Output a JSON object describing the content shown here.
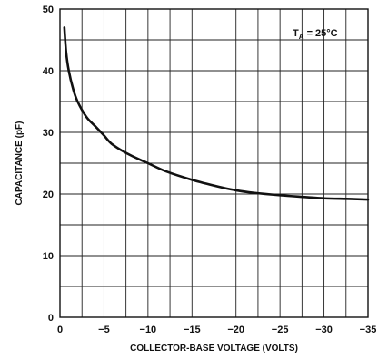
{
  "chart_data": {
    "type": "line",
    "title": "",
    "xlabel": "COLLECTOR-BASE VOLTAGE (VOLTS)",
    "ylabel": "CAPACITANCE (pF)",
    "xlim": [
      0,
      -35
    ],
    "ylim": [
      0,
      50
    ],
    "grid": true,
    "x_ticks": [
      0,
      -5,
      -10,
      -15,
      -20,
      -25,
      -30,
      -35
    ],
    "x_tick_labels": [
      "0",
      "−5",
      "−10",
      "−15",
      "−20",
      "−25",
      "−30",
      "−35"
    ],
    "y_ticks": [
      0,
      10,
      20,
      30,
      40,
      50
    ],
    "y_tick_labels": [
      "0",
      "10",
      "20",
      "30",
      "40",
      "50"
    ],
    "annotation": {
      "main": "T",
      "subscript": "A",
      "rest": " = 25°C"
    },
    "series": [
      {
        "color": "#111111",
        "x": [
          -0.5,
          -0.7,
          -1,
          -1.5,
          -2,
          -3,
          -4,
          -5,
          -6,
          -8,
          -10,
          -12,
          -15,
          -18,
          -20,
          -22,
          -25,
          -28,
          -30,
          -33,
          -35
        ],
        "y": [
          47,
          43,
          40,
          37,
          35,
          32.5,
          31,
          29.5,
          28,
          26.3,
          25,
          23.7,
          22.3,
          21.2,
          20.6,
          20.2,
          19.8,
          19.5,
          19.3,
          19.2,
          19.1
        ]
      }
    ]
  }
}
